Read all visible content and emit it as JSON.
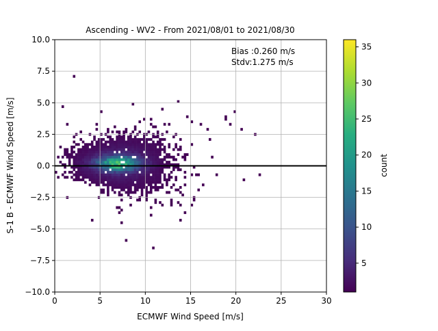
{
  "chart_data": {
    "type": "heatmap",
    "title": "Ascending - WV2 - From 2021/08/01 to 2021/08/30",
    "xlabel": "ECMWF Wind Speed [m/s]",
    "ylabel": "S-1 B - ECMWF Wind Speed [m/s]",
    "xlim": [
      0,
      30
    ],
    "ylim": [
      -10,
      10
    ],
    "xticks": [
      "0",
      "5",
      "10",
      "15",
      "20",
      "25",
      "30"
    ],
    "yticks": [
      "−10.0",
      "−7.5",
      "−5.0",
      "−2.5",
      "0.0",
      "2.5",
      "5.0",
      "7.5",
      "10.0"
    ],
    "grid": true,
    "annotations": [
      "Bias :0.260 m/s",
      "Stdv:1.275 m/s"
    ],
    "zero_line_y": 0,
    "colorbar": {
      "label": "count",
      "range": [
        1,
        36
      ],
      "ticks": [
        "5",
        "10",
        "15",
        "20",
        "25",
        "30",
        "35"
      ],
      "colormap": "viridis"
    },
    "density_peak": {
      "x": 7.0,
      "y": 0.2,
      "max_count": 36
    }
  }
}
